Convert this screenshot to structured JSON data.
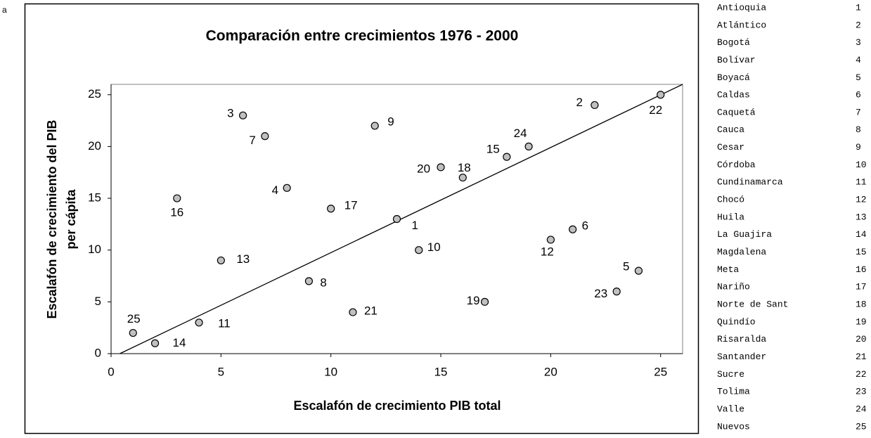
{
  "corner_text": "a",
  "chart_data": {
    "type": "scatter",
    "title": "Comparación entre crecimientos 1976 - 2000",
    "x_label": "Escalafón de crecimiento PIB total",
    "y_label": [
      "Escalafón de crecimiento del PIB",
      "per cápita"
    ],
    "x": [
      13,
      22,
      6,
      8,
      24,
      21,
      7,
      9,
      12,
      14,
      4,
      20,
      5,
      2,
      18,
      3,
      10,
      16,
      17,
      15,
      11,
      25,
      23,
      19,
      1
    ],
    "values": [
      13,
      24,
      23,
      16,
      8,
      12,
      21,
      7,
      22,
      10,
      3,
      11,
      9,
      1,
      19,
      15,
      14,
      17,
      5,
      18,
      4,
      25,
      6,
      20,
      2
    ],
    "point_labels": [
      1,
      2,
      3,
      4,
      5,
      6,
      7,
      8,
      9,
      10,
      11,
      12,
      13,
      14,
      15,
      16,
      17,
      18,
      19,
      20,
      21,
      22,
      23,
      24,
      25
    ],
    "color": "#c0c0c0",
    "trend_line": {
      "x": [
        0.4,
        26
      ],
      "y": [
        0,
        26
      ]
    },
    "xlim": [
      0,
      26
    ],
    "ylim": [
      0,
      26
    ],
    "xticks": [
      0,
      5,
      10,
      15,
      20,
      25
    ],
    "yticks": [
      0,
      5,
      10,
      15,
      20,
      25
    ],
    "grid": false
  },
  "table": {
    "rows": [
      [
        "Antioquia",
        1
      ],
      [
        "Atlántico",
        2
      ],
      [
        "Bogotá",
        3
      ],
      [
        "Bolívar",
        4
      ],
      [
        "Boyacá",
        5
      ],
      [
        "Caldas",
        6
      ],
      [
        "Caquetá",
        7
      ],
      [
        "Cauca",
        8
      ],
      [
        "Cesar",
        9
      ],
      [
        "Córdoba",
        10
      ],
      [
        "Cundinamarca",
        11
      ],
      [
        "Chocó",
        12
      ],
      [
        "Huila",
        13
      ],
      [
        "La Guajira",
        14
      ],
      [
        "Magdalena",
        15
      ],
      [
        "Meta",
        16
      ],
      [
        "Nariño",
        17
      ],
      [
        "Norte de Sant",
        18
      ],
      [
        "Quindío",
        19
      ],
      [
        "Risaralda",
        20
      ],
      [
        "Santander",
        21
      ],
      [
        "Sucre",
        22
      ],
      [
        "Tolima",
        23
      ],
      [
        "Valle",
        24
      ],
      [
        "Nuevos",
        25
      ]
    ]
  }
}
